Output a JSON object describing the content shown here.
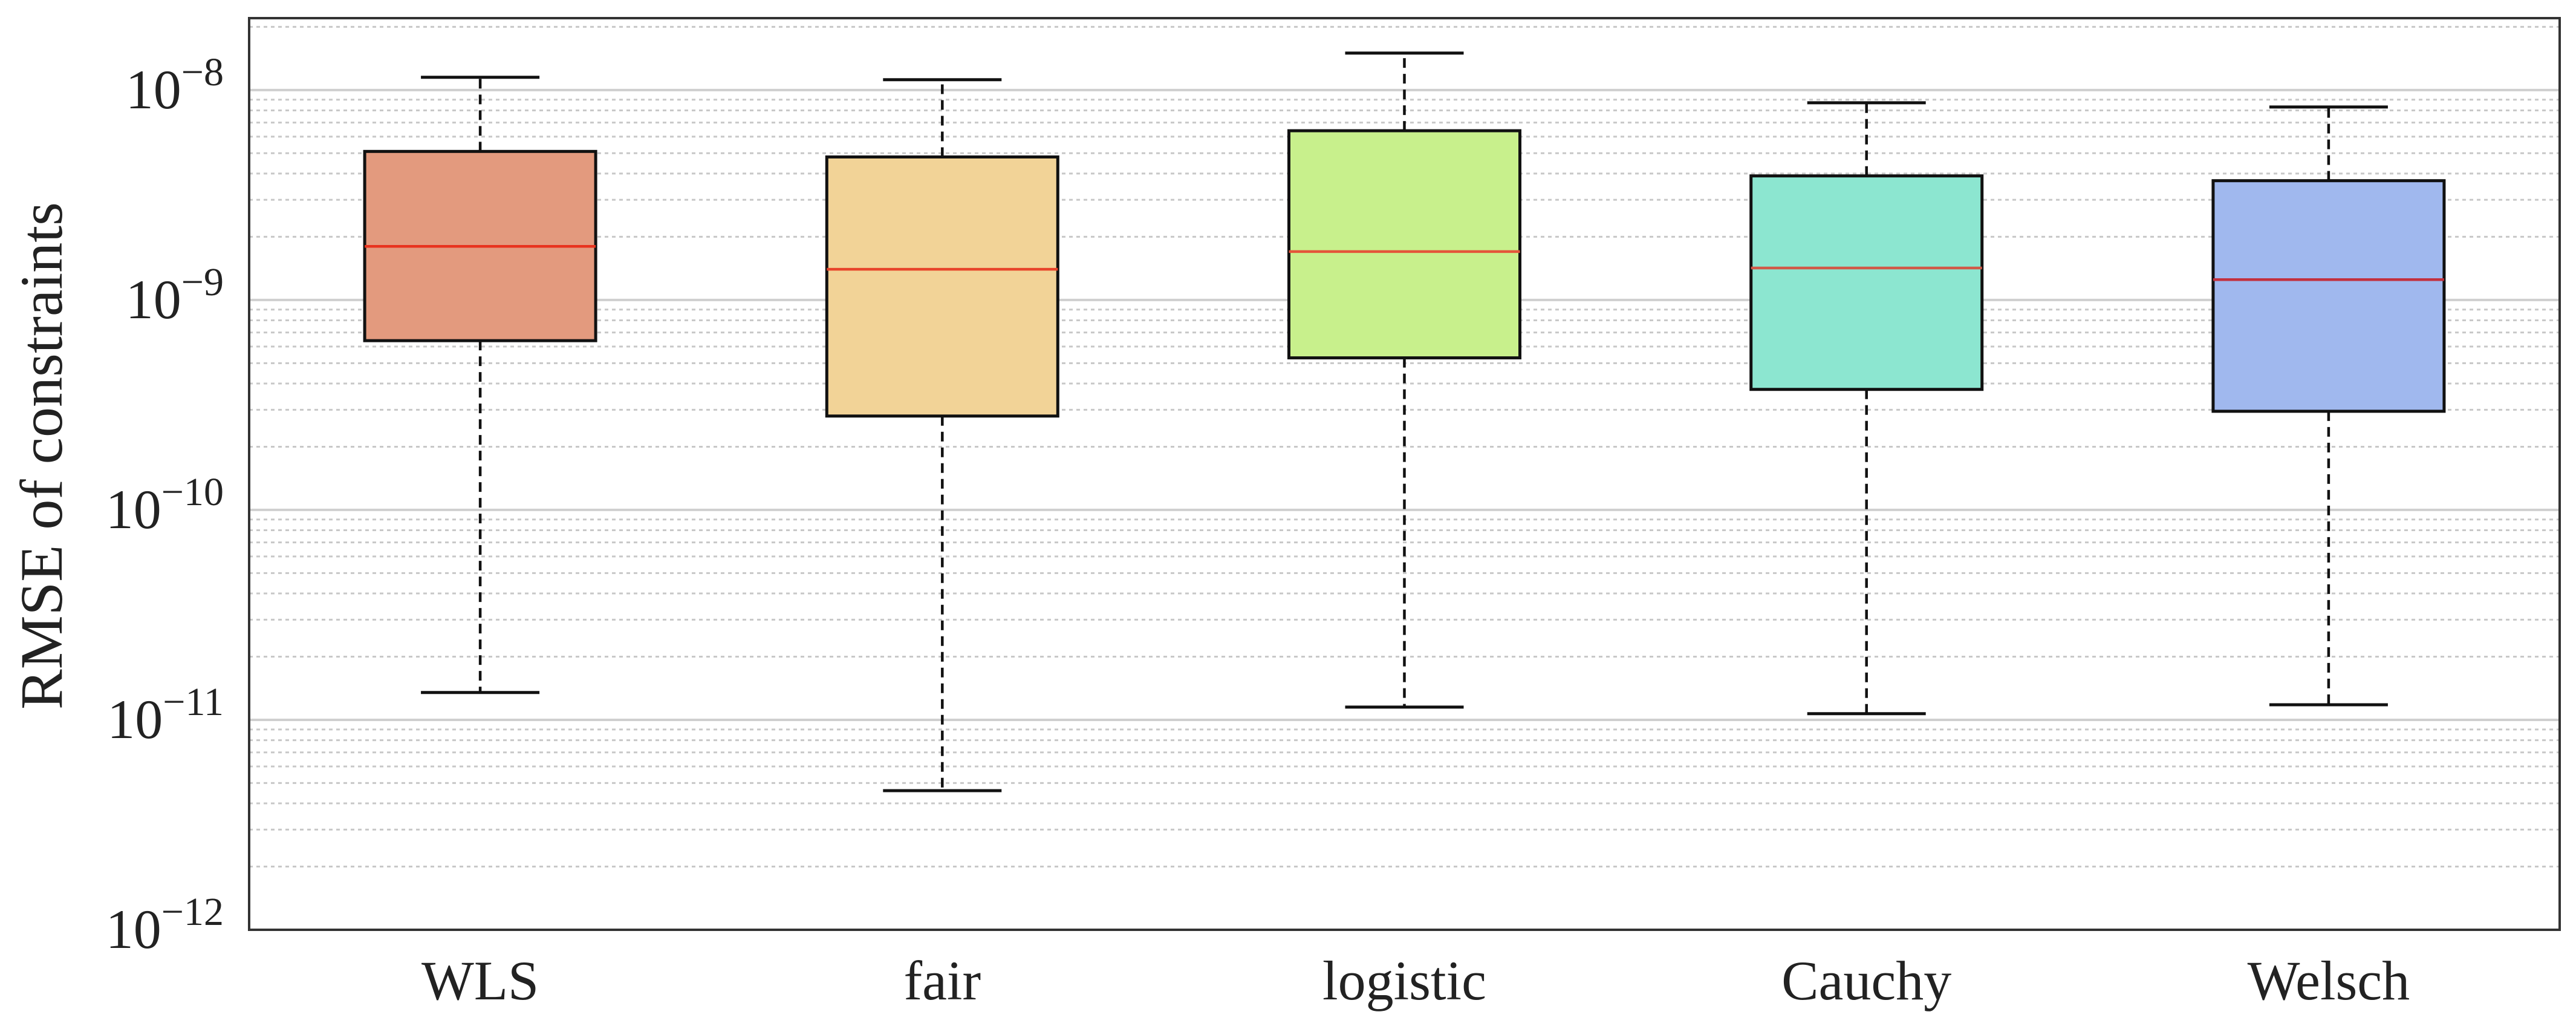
{
  "chart_data": {
    "type": "box",
    "ylabel": "RMSE of constraints",
    "xlabel": "",
    "y_scale": "log",
    "ylim": [
      1e-12,
      2.2e-08
    ],
    "y_ticks": [
      {
        "value": 1e-12,
        "base": "10",
        "exp": "−12"
      },
      {
        "value": 1e-11,
        "base": "10",
        "exp": "−11"
      },
      {
        "value": 1e-10,
        "base": "10",
        "exp": "−10"
      },
      {
        "value": 1e-09,
        "base": "10",
        "exp": "−9"
      },
      {
        "value": 1e-08,
        "base": "10",
        "exp": "−8"
      }
    ],
    "grid": "major and minor horizontal",
    "categories": [
      "WLS",
      "fair",
      "logistic",
      "Cauchy",
      "Welsch"
    ],
    "boxes": [
      {
        "label": "WLS",
        "whisker_low": 1.35e-11,
        "q1": 6.4e-10,
        "median": 1.8e-09,
        "q3": 5.1e-09,
        "whisker_high": 1.15e-08,
        "color": "#E39A7E",
        "median_color": "#E8331E"
      },
      {
        "label": "fair",
        "whisker_low": 4.6e-12,
        "q1": 2.8e-10,
        "median": 1.4e-09,
        "q3": 4.8e-09,
        "whisker_high": 1.12e-08,
        "color": "#F2D397",
        "median_color": "#E8442A"
      },
      {
        "label": "logistic",
        "whisker_low": 1.15e-11,
        "q1": 5.3e-10,
        "median": 1.7e-09,
        "q3": 6.4e-09,
        "whisker_high": 1.5e-08,
        "color": "#C8F08C",
        "median_color": "#E4553A"
      },
      {
        "label": "Cauchy",
        "whisker_low": 1.07e-11,
        "q1": 3.75e-10,
        "median": 1.42e-09,
        "q3": 3.9e-09,
        "whisker_high": 8.7e-09,
        "color": "#8CE6D0",
        "median_color": "#D05A48"
      },
      {
        "label": "Welsch",
        "whisker_low": 1.18e-11,
        "q1": 2.95e-10,
        "median": 1.25e-09,
        "q3": 3.7e-09,
        "whisker_high": 8.3e-09,
        "color": "#A0B8EE",
        "median_color": "#C2303E"
      }
    ]
  }
}
